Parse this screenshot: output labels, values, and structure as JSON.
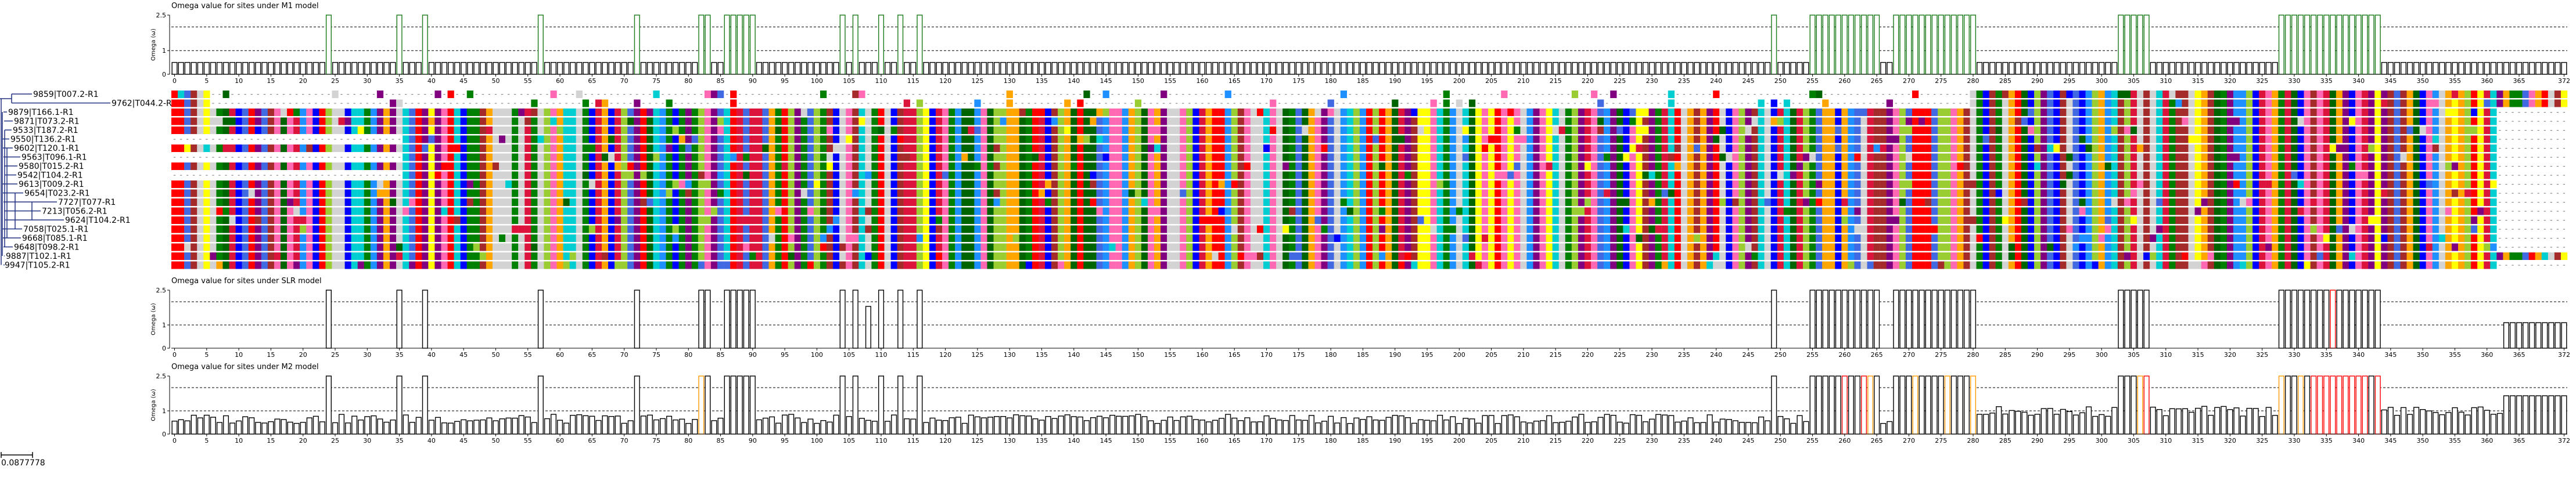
{
  "colors": {
    "bar_stroke": "#000000",
    "bar_fill": "#ffffff",
    "m1_bar": "#1a7a1a",
    "moderate": "#ff9900",
    "strong": "#ff0000",
    "tree": "#203080",
    "gap": "#888888"
  },
  "panels": {
    "m1": {
      "title": "Omega value for sites under M1 model",
      "ylabel": "Omega (ω)"
    },
    "slr": {
      "title": "Omega value for sites under SLR model",
      "ylabel": "Omega (ω)"
    },
    "m2": {
      "title": "Omega value for sites under M2 model",
      "ylabel": "Omega (ω)"
    }
  },
  "scale_bar": {
    "label": "0.0877778"
  },
  "tree": {
    "leaves": [
      "9859|T007.2-R1",
      "9762|T044.2-R1",
      "9879|T166.1-R1",
      "9871|T073.2-R1",
      "9533|T187.2-R1",
      "9550|T136.2-R1",
      "9602|T120.1-R1",
      "9563|T096.1-R1",
      "9580|T015.2-R1",
      "9542|T104.2-R1",
      "9613|T009.2-R1",
      "9654|T023.2-R1",
      "7727|T077-R1",
      "7213|T056.2-R1",
      "9624|T104.2-R1",
      "7058|T025.1-R1",
      "9668|T085.1-R1",
      "9648|T098.2-R1",
      "9887|T102.1-R1",
      "9947|T105.2-R1"
    ]
  },
  "chart_data": [
    {
      "type": "bar",
      "title": "Omega value for sites under M1 model",
      "ylabel": "Omega (ω)",
      "ylim": [
        0,
        2.5
      ],
      "yticks": [
        0,
        1,
        2.5
      ],
      "x_first": 0,
      "x_last": 372,
      "xtick_step": 5,
      "xtick_last": 372,
      "reference_lines": [
        1.0,
        2.0
      ],
      "baseline_value": 0.5,
      "high_value": 2.5,
      "high_sites": [
        24,
        35,
        39,
        57,
        72,
        82,
        83,
        86,
        87,
        88,
        89,
        90,
        104,
        106,
        110,
        113,
        116,
        249,
        255,
        256,
        257,
        258,
        259,
        260,
        261,
        262,
        263,
        264,
        265,
        268,
        269,
        270,
        271,
        272,
        273,
        274,
        275,
        276,
        277,
        278,
        279,
        280,
        303,
        304,
        305,
        306,
        307,
        328,
        329,
        330,
        331,
        332,
        333,
        334,
        335,
        336,
        337,
        338,
        339,
        340,
        341,
        342,
        343
      ]
    },
    {
      "type": "bar",
      "title": "Omega value for sites under SLR model",
      "ylabel": "Omega (ω)",
      "ylim": [
        0,
        2.5
      ],
      "yticks": [
        0,
        1,
        2.5
      ],
      "x_first": 0,
      "x_last": 372,
      "xtick_step": 5,
      "xtick_last": 372,
      "reference_lines": [
        1.0,
        2.0
      ],
      "high_value": 2.5,
      "high_sites": [
        24,
        35,
        39,
        57,
        72,
        82,
        83,
        86,
        87,
        88,
        89,
        90,
        104,
        106,
        110,
        113,
        116,
        249,
        255,
        256,
        257,
        258,
        259,
        260,
        261,
        262,
        263,
        264,
        265,
        268,
        269,
        270,
        271,
        272,
        273,
        274,
        275,
        276,
        277,
        278,
        279,
        280,
        303,
        304,
        305,
        306,
        307,
        328,
        329,
        330,
        331,
        332,
        333,
        334,
        335,
        336,
        337,
        338,
        339,
        340,
        341,
        342,
        343
      ],
      "mid_sites": [
        108
      ],
      "mid_value": 1.8,
      "strong_sites": [
        336
      ],
      "tail_sites_from": 363,
      "tail_value": 1.1
    },
    {
      "type": "bar",
      "title": "Omega value for sites under M2 model",
      "ylabel": "Omega (ω)",
      "ylim": [
        0,
        2.5
      ],
      "yticks": [
        0,
        1,
        2.5
      ],
      "x_first": 0,
      "x_last": 372,
      "xtick_step": 5,
      "xtick_last": 372,
      "reference_lines": [
        1.0,
        2.0
      ],
      "baseline_range": [
        0.45,
        0.85
      ],
      "right_baseline_range": [
        0.75,
        1.2
      ],
      "high_value": 2.5,
      "high_sites": [
        24,
        35,
        39,
        57,
        72,
        82,
        83,
        86,
        87,
        88,
        89,
        90,
        104,
        106,
        110,
        113,
        116,
        249,
        255,
        256,
        257,
        258,
        259,
        260,
        261,
        262,
        263,
        264,
        265,
        268,
        269,
        270,
        271,
        272,
        273,
        274,
        275,
        276,
        277,
        278,
        279,
        280,
        303,
        304,
        305,
        306,
        307,
        328,
        329,
        330,
        331,
        332,
        333,
        334,
        335,
        336,
        337,
        338,
        339,
        340,
        341,
        342,
        343
      ],
      "moderate_sites": [
        82,
        264,
        271,
        276,
        280,
        306,
        328,
        331
      ],
      "strong_sites": [
        260,
        263,
        307,
        333,
        334,
        335,
        336,
        337,
        338,
        339,
        340,
        341,
        343
      ],
      "tail_sites_from": 363,
      "tail_value": 1.65
    }
  ]
}
